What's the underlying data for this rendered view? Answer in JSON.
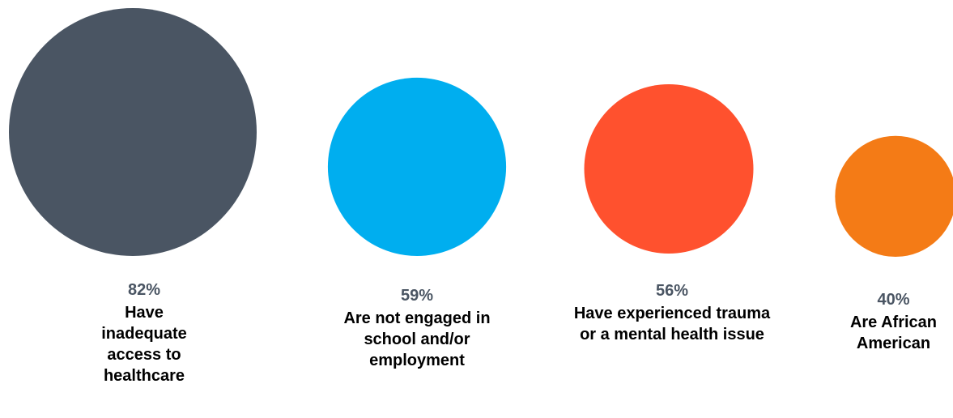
{
  "chart_data": {
    "type": "bubble",
    "title": "",
    "series": [
      {
        "value": 82,
        "percent_label": "82%",
        "label": "Have inadequate access to healthcare",
        "color": "#4a5563"
      },
      {
        "value": 59,
        "percent_label": "59%",
        "label": "Are not engaged in school and/or employment",
        "color": "#00aeef"
      },
      {
        "value": 56,
        "percent_label": "56%",
        "label": "Have experienced trauma or a mental health issue",
        "color": "#ff512e"
      },
      {
        "value": 40,
        "percent_label": "40%",
        "label": "Are African American",
        "color": "#f47b16"
      }
    ]
  }
}
